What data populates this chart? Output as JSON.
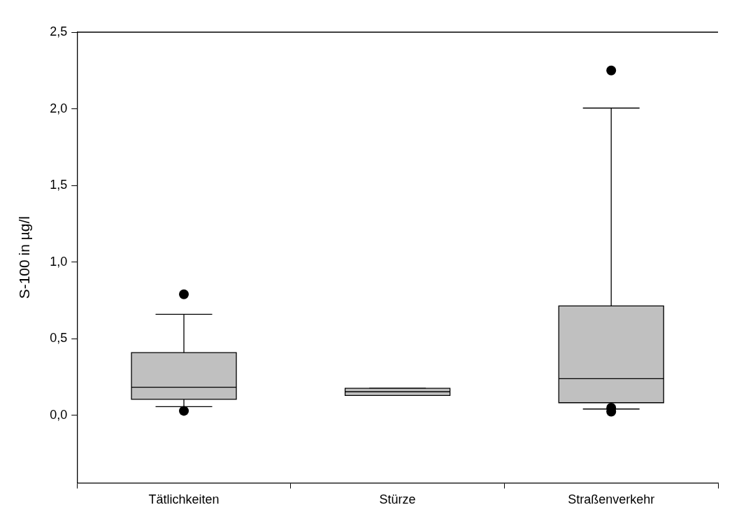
{
  "chart_data": {
    "type": "box",
    "ylabel": "S-100 in µg/l",
    "categories": [
      "Tätlichkeiten",
      "Stürze",
      "Straßenverkehr"
    ],
    "color": "#c0c0c0",
    "boxes": [
      {
        "low": 0.057,
        "q1": 0.105,
        "median": 0.184,
        "q3": 0.41,
        "high": 0.66,
        "outliers": [
          0.03,
          0.79
        ]
      },
      {
        "low": 0.13,
        "q1": 0.13,
        "median": 0.155,
        "q3": 0.177,
        "high": 0.177
      },
      {
        "low": 0.042,
        "q1": 0.083,
        "median": 0.24,
        "q3": 0.714,
        "high": 2.005,
        "outliers": [
          0.05,
          0.025,
          2.25
        ]
      }
    ],
    "ylim": [
      -0.44,
      2.5
    ],
    "yticks": [
      {
        "value": 0,
        "label": "0,0"
      },
      {
        "value": 0.5,
        "label": "0,5"
      },
      {
        "value": 1,
        "label": "1,0"
      },
      {
        "value": 1.5,
        "label": "1,5"
      },
      {
        "value": 2,
        "label": "2,0"
      },
      {
        "value": 2.5,
        "label": "2,5"
      }
    ],
    "grid": false,
    "legend": false
  }
}
